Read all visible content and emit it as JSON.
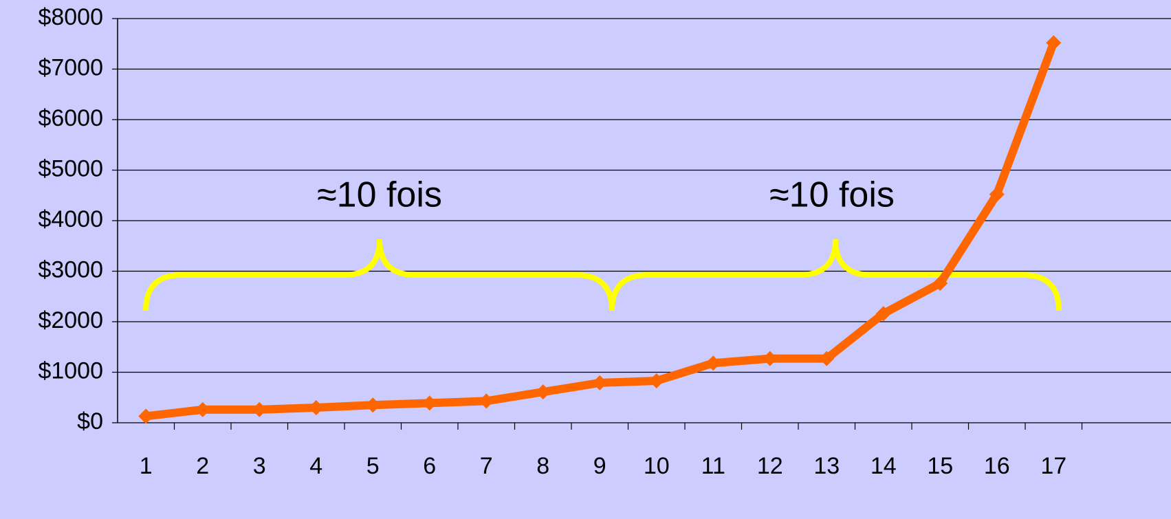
{
  "chart_data": {
    "type": "line",
    "categories": [
      "1",
      "2",
      "3",
      "4",
      "5",
      "6",
      "7",
      "8",
      "9",
      "10",
      "11",
      "12",
      "13",
      "14",
      "15",
      "16",
      "17"
    ],
    "series": [
      {
        "color": "#ff6600",
        "values": [
          130,
          260,
          260,
          300,
          350,
          390,
          430,
          610,
          790,
          830,
          1180,
          1270,
          1270,
          2160,
          2760,
          4520,
          7520
        ]
      }
    ],
    "ylim": [
      0,
      8000
    ],
    "yticks": [
      {
        "value": 0,
        "label": "$0"
      },
      {
        "value": 1000,
        "label": "$1000"
      },
      {
        "value": 2000,
        "label": "$2000"
      },
      {
        "value": 3000,
        "label": "$3000"
      },
      {
        "value": 4000,
        "label": "$4000"
      },
      {
        "value": 5000,
        "label": "$5000"
      },
      {
        "value": 6000,
        "label": "$6000"
      },
      {
        "value": 7000,
        "label": "$7000"
      },
      {
        "value": 8000,
        "label": "$8000"
      }
    ],
    "grid": true,
    "annotations": [
      "≈10 fois",
      "≈10 fois"
    ]
  }
}
